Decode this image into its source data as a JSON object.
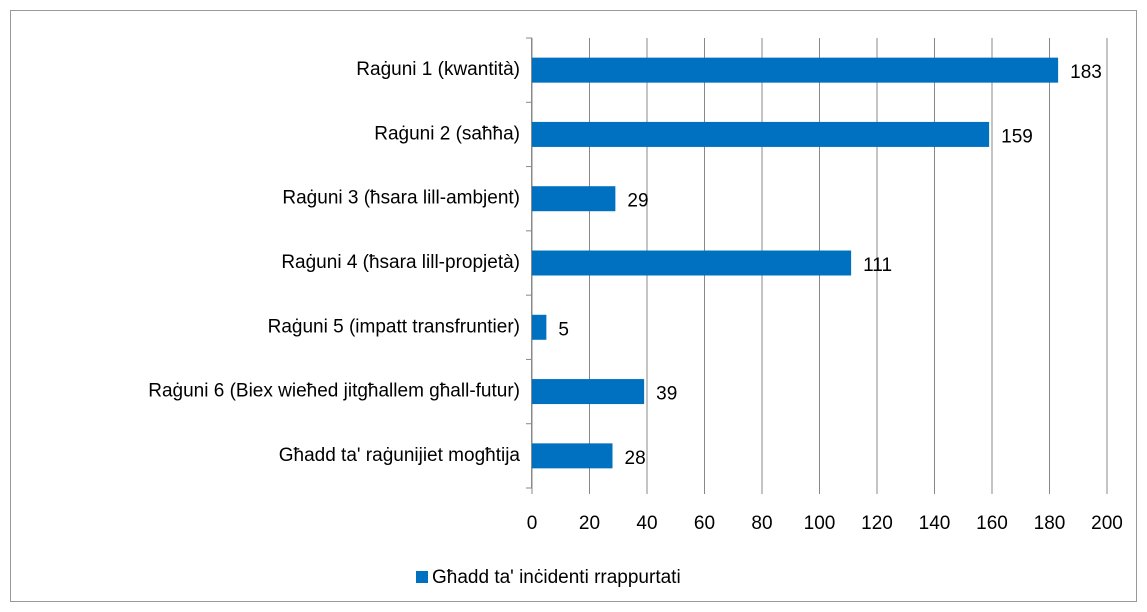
{
  "chart_data": {
    "type": "bar",
    "orientation": "horizontal",
    "categories": [
      "Raġuni 1 (kwantità)",
      "Raġuni 2 (saħħa)",
      "Raġuni 3 (ħsara lill-ambjent)",
      "Raġuni 4 (ħsara lill-propjetà)",
      "Raġuni 5 (impatt transfruntier)",
      "Raġuni 6 (Biex wieħed jitgħallem għall-futur)",
      "Għadd ta' raġunijiet mogħtija"
    ],
    "series": [
      {
        "name": "Għadd ta' inċidenti rrappurtati",
        "color": "#0070c0",
        "values": [
          183,
          159,
          29,
          111,
          5,
          39,
          28
        ]
      }
    ],
    "xlim": [
      0,
      200
    ],
    "xticks": [
      0,
      20,
      40,
      60,
      80,
      100,
      120,
      140,
      160,
      180,
      200
    ],
    "grid": true,
    "legend": "bottom"
  }
}
